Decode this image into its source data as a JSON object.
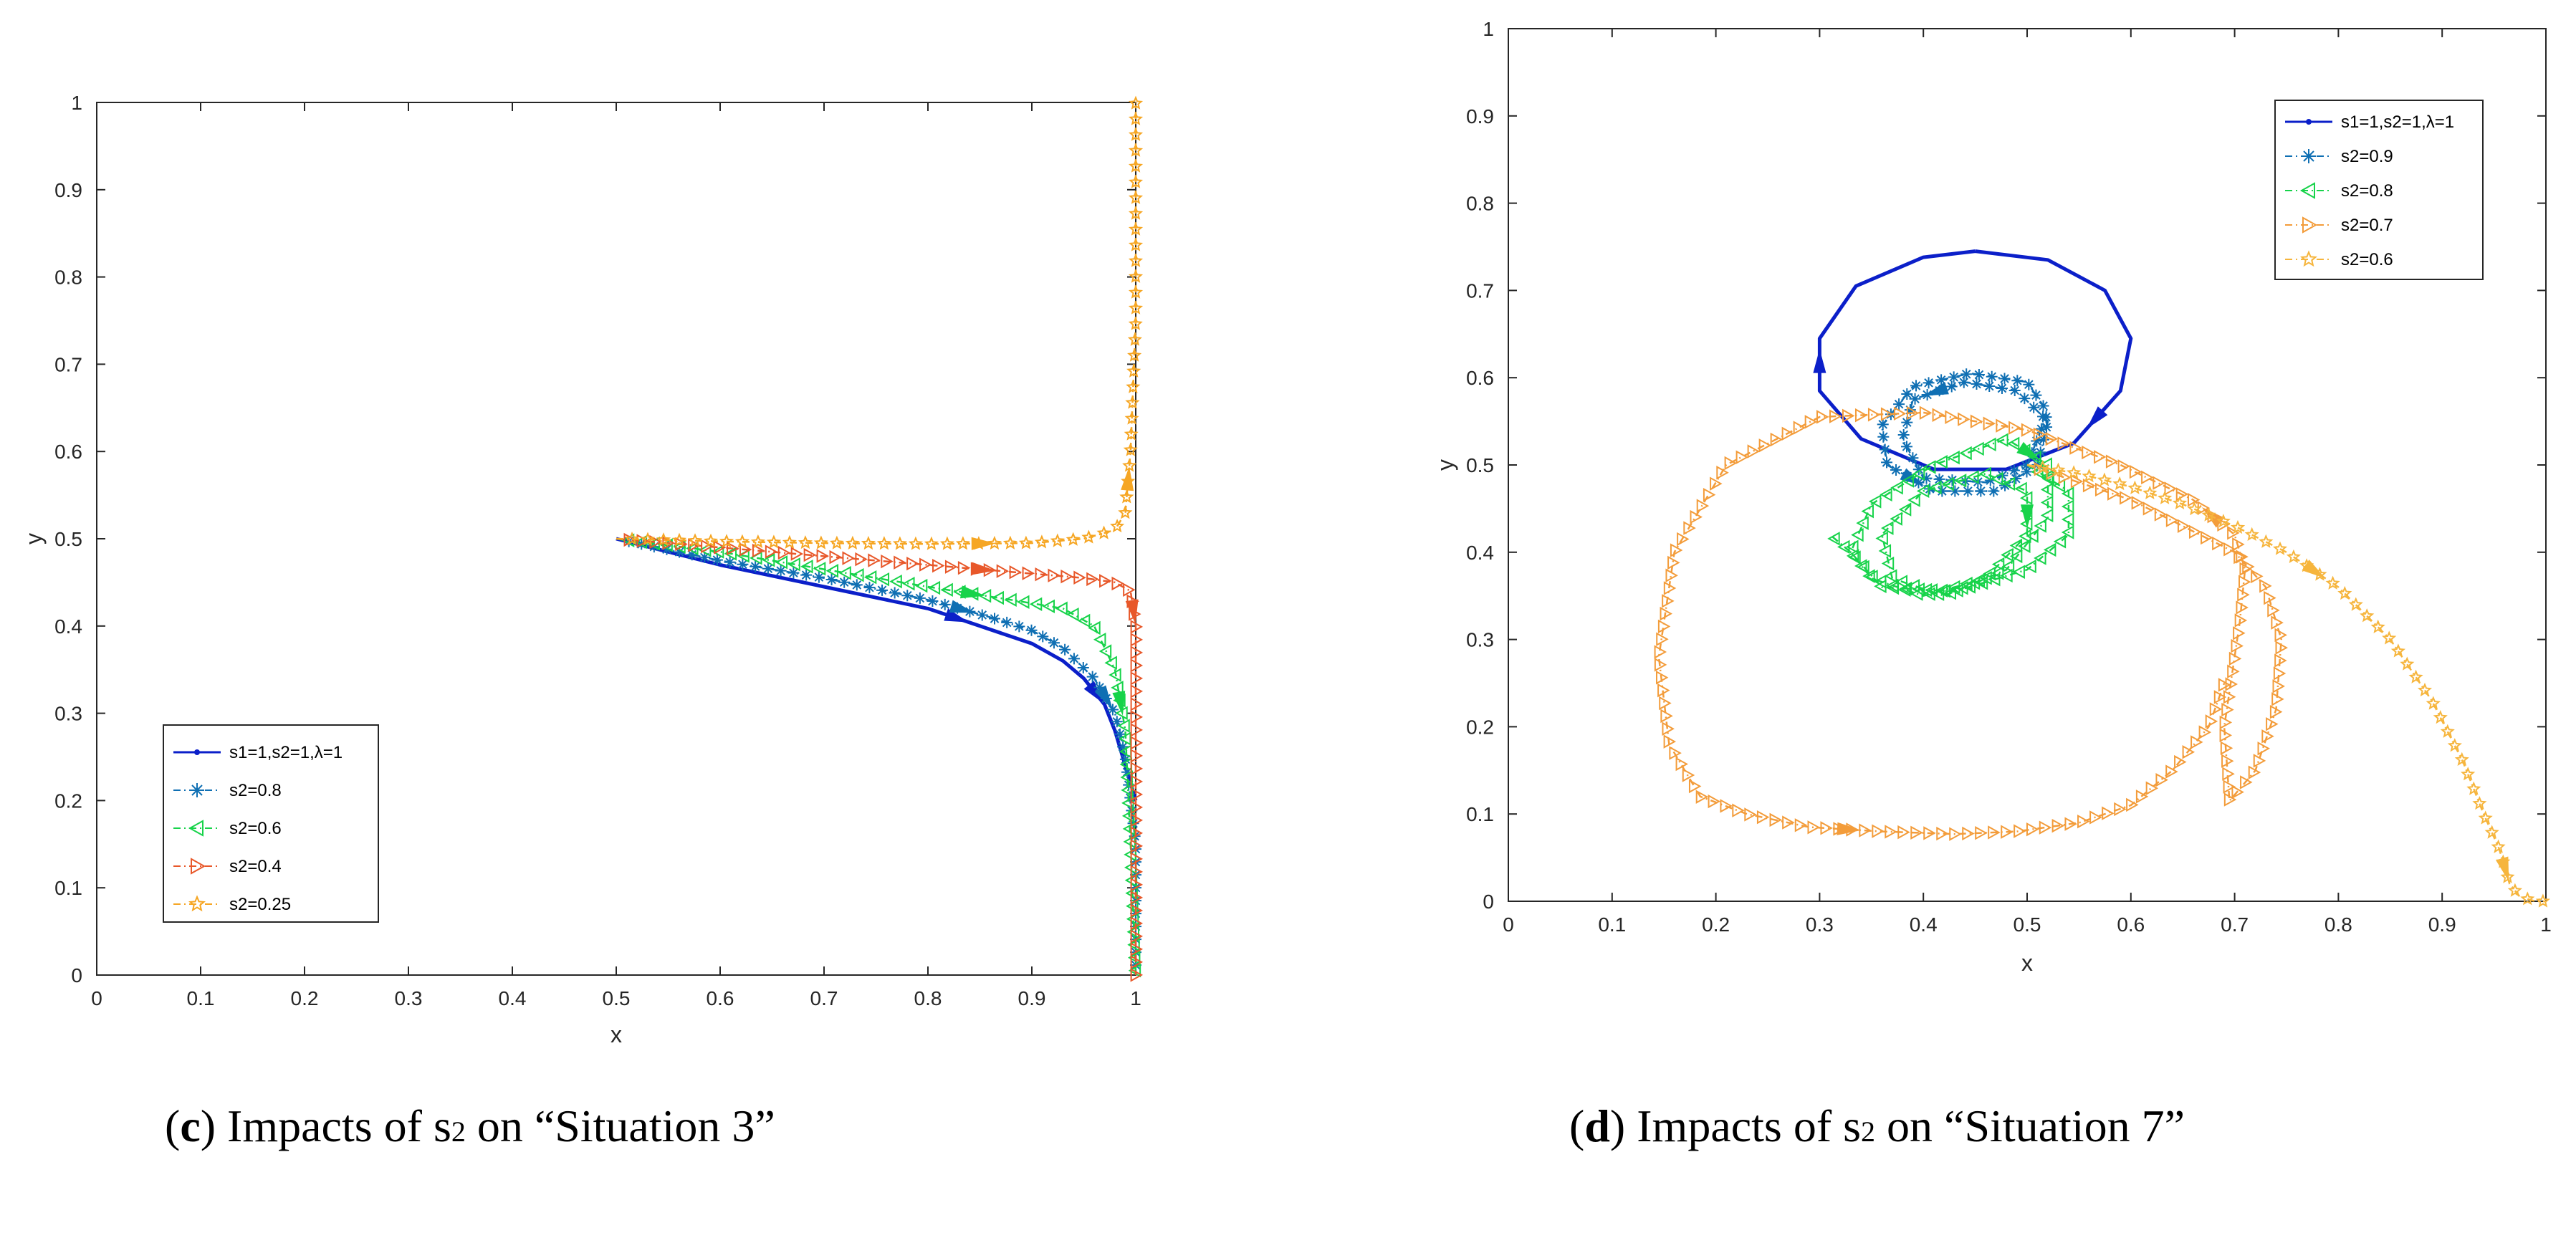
{
  "chart_data": [
    {
      "type": "line",
      "title": "",
      "xlabel": "x",
      "ylabel": "y",
      "xlim": [
        0,
        1
      ],
      "ylim": [
        0,
        1
      ],
      "xticks": [
        "0",
        "0.1",
        "0.2",
        "0.3",
        "0.4",
        "0.5",
        "0.6",
        "0.7",
        "0.8",
        "0.9",
        "1"
      ],
      "yticks": [
        "0",
        "0.1",
        "0.2",
        "0.3",
        "0.4",
        "0.5",
        "0.6",
        "0.7",
        "0.8",
        "0.9",
        "1"
      ],
      "legend_position": "bottom-left",
      "caption": {
        "letter": "c",
        "pre": ") Impacts of s",
        "sub": "2",
        "post": " on “Situation 3”"
      },
      "series": [
        {
          "name": "s1=1,s2=1,λ=1",
          "color": "#0b1fc9",
          "marker": "dot",
          "dash": "solid",
          "x": [
            0.5,
            0.6,
            0.7,
            0.8,
            0.85,
            0.9,
            0.93,
            0.95,
            0.97,
            0.98,
            0.99,
            1.0
          ],
          "y": [
            0.5,
            0.47,
            0.445,
            0.42,
            0.4,
            0.38,
            0.36,
            0.34,
            0.31,
            0.28,
            0.24,
            0.2
          ]
        },
        {
          "name": "s2=0.8",
          "color": "#0f6fb3",
          "marker": "star",
          "dash": "dashdot",
          "x": [
            0.5,
            0.6,
            0.7,
            0.8,
            0.86,
            0.9,
            0.93,
            0.96,
            0.98,
            0.99,
            1.0,
            1.0
          ],
          "y": [
            0.5,
            0.475,
            0.455,
            0.43,
            0.41,
            0.395,
            0.375,
            0.34,
            0.3,
            0.25,
            0.15,
            0.0
          ]
        },
        {
          "name": "s2=0.6",
          "color": "#17d34a",
          "marker": "triangle-left",
          "dash": "dashdot",
          "x": [
            0.5,
            0.6,
            0.7,
            0.8,
            0.88,
            0.93,
            0.96,
            0.98,
            0.99,
            0.995,
            1.0
          ],
          "y": [
            0.5,
            0.485,
            0.465,
            0.445,
            0.43,
            0.42,
            0.4,
            0.35,
            0.28,
            0.15,
            0.0
          ]
        },
        {
          "name": "s2=0.4",
          "color": "#e8582a",
          "marker": "triangle-right",
          "dash": "dashdot",
          "x": [
            0.5,
            0.6,
            0.7,
            0.8,
            0.9,
            0.95,
            0.98,
            0.995,
            1.0,
            1.0,
            1.0
          ],
          "y": [
            0.5,
            0.49,
            0.48,
            0.47,
            0.46,
            0.455,
            0.45,
            0.44,
            0.4,
            0.2,
            0.0
          ]
        },
        {
          "name": "s2=0.25",
          "color": "#f6a623",
          "marker": "pentagram",
          "dash": "dashdot",
          "x": [
            0.5,
            0.6,
            0.7,
            0.8,
            0.9,
            0.95,
            0.98,
            0.99,
            0.995,
            1.0,
            1.0,
            1.0
          ],
          "y": [
            0.5,
            0.497,
            0.495,
            0.494,
            0.495,
            0.5,
            0.51,
            0.53,
            0.6,
            0.75,
            0.9,
            1.0
          ]
        }
      ]
    },
    {
      "type": "line",
      "title": "",
      "xlabel": "x",
      "ylabel": "y",
      "xlim": [
        0,
        1
      ],
      "ylim": [
        0,
        1
      ],
      "xticks": [
        "0",
        "0.1",
        "0.2",
        "0.3",
        "0.4",
        "0.5",
        "0.6",
        "0.7",
        "0.8",
        "0.9",
        "1"
      ],
      "yticks": [
        "0",
        "0.1",
        "0.2",
        "0.3",
        "0.4",
        "0.5",
        "0.6",
        "0.7",
        "0.8",
        "0.9",
        "1"
      ],
      "legend_position": "top-right",
      "caption": {
        "letter": "d",
        "pre": ") Impacts of s",
        "sub": "2",
        "post": " on “Situation 7”"
      },
      "series": [
        {
          "name": "s1=1,s2=1,λ=1",
          "color": "#0b1fc9",
          "marker": "dot",
          "dash": "solid",
          "x": [
            0.45,
            0.52,
            0.575,
            0.6,
            0.59,
            0.545,
            0.48,
            0.41,
            0.34,
            0.3,
            0.3,
            0.335,
            0.4,
            0.45
          ],
          "y": [
            0.745,
            0.735,
            0.7,
            0.645,
            0.585,
            0.525,
            0.495,
            0.495,
            0.53,
            0.585,
            0.645,
            0.705,
            0.738,
            0.745
          ]
        },
        {
          "name": "s2=0.9",
          "color": "#0f6fb3",
          "marker": "star",
          "dash": "dashdot",
          "x": [
            0.5,
            0.52,
            0.5,
            0.445,
            0.39,
            0.36,
            0.365,
            0.41,
            0.47,
            0.51,
            0.52,
            0.49,
            0.44,
            0.39,
            0.38,
            0.4,
            0.46,
            0.5
          ],
          "y": [
            0.5,
            0.56,
            0.595,
            0.605,
            0.59,
            0.545,
            0.5,
            0.47,
            0.47,
            0.5,
            0.55,
            0.585,
            0.595,
            0.575,
            0.53,
            0.485,
            0.48,
            0.5
          ]
        },
        {
          "name": "s2=0.8",
          "color": "#17d34a",
          "marker": "triangle-left",
          "dash": "dashdot",
          "x": [
            0.5,
            0.54,
            0.54,
            0.5,
            0.43,
            0.36,
            0.33,
            0.35,
            0.41,
            0.48,
            0.52,
            0.52,
            0.48,
            0.42,
            0.37,
            0.36,
            0.4,
            0.46,
            0.5,
            0.5,
            0.46,
            0.4,
            0.35,
            0.33,
            0.31
          ],
          "y": [
            0.5,
            0.47,
            0.42,
            0.38,
            0.355,
            0.36,
            0.4,
            0.455,
            0.5,
            0.53,
            0.5,
            0.44,
            0.38,
            0.35,
            0.37,
            0.42,
            0.47,
            0.49,
            0.47,
            0.42,
            0.37,
            0.35,
            0.37,
            0.4,
            0.42
          ]
        },
        {
          "name": "s2=0.7",
          "color": "#f39c3a",
          "marker": "triangle-right",
          "dash": "dashdot",
          "x": [
            0.5,
            0.55,
            0.6,
            0.65,
            0.7,
            0.73,
            0.745,
            0.74,
            0.72,
            0.695,
            0.69,
            0.705,
            0.71,
            0.7,
            0.66,
            0.59,
            0.5,
            0.4,
            0.3,
            0.21,
            0.16,
            0.145,
            0.155,
            0.185,
            0.23,
            0.29,
            0.36,
            0.43,
            0.49,
            0.55,
            0.6,
            0.64,
            0.675,
            0.69
          ],
          "y": [
            0.5,
            0.48,
            0.46,
            0.43,
            0.4,
            0.36,
            0.3,
            0.22,
            0.15,
            0.115,
            0.2,
            0.32,
            0.38,
            0.42,
            0.46,
            0.5,
            0.54,
            0.56,
            0.555,
            0.5,
            0.4,
            0.28,
            0.18,
            0.12,
            0.1,
            0.085,
            0.08,
            0.077,
            0.08,
            0.09,
            0.11,
            0.15,
            0.2,
            0.25
          ]
        },
        {
          "name": "s2=0.6",
          "color": "#f6b53d",
          "marker": "pentagram",
          "dash": "dashdot",
          "x": [
            0.5,
            0.55,
            0.6,
            0.65,
            0.7,
            0.75,
            0.8,
            0.85,
            0.89,
            0.92,
            0.94,
            0.955,
            0.965,
            0.975,
            0.99,
            1.0
          ],
          "y": [
            0.5,
            0.49,
            0.475,
            0.455,
            0.43,
            0.4,
            0.36,
            0.3,
            0.23,
            0.16,
            0.1,
            0.06,
            0.02,
            0.005,
            0.0,
            0.0
          ]
        }
      ]
    }
  ]
}
